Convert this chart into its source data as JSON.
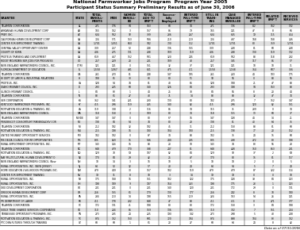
{
  "title1": "National Farmworker Jobs Program  Program Year 2005",
  "title2": "Participant Status Summary Preliminary Results as of June 30, 2006",
  "footer": "Data as of 07/31/2006",
  "header_bg": "#b8b8b8",
  "alt_row_bg": "#e0e0e0",
  "col_headers": [
    "GRANTEE",
    "STATE",
    "TOTAL\nENROLL-\nMENTS",
    "MEN",
    "WOMEN\nENROLL-\nED",
    "TOTAL\nADV TO\nEMP'T",
    "Success-\nfully\nEmployed",
    "ENTERED\nFULL-TIME\nEMP'T",
    "STILL IN\nTRAIN-\nING",
    "CASE\nMANAGED\nENROLLEE",
    "ENTERED\nFULL-TIME\nEMP'T",
    "RELATED\nEMP'T",
    "RECEIVED\nSERVICES"
  ],
  "col_props": [
    0.21,
    0.04,
    0.06,
    0.038,
    0.054,
    0.056,
    0.062,
    0.065,
    0.055,
    0.065,
    0.058,
    0.048,
    0.057
  ],
  "rows": [
    [
      "TELAMON CORPORATION",
      "AL",
      "271",
      "176",
      "94",
      "163",
      "60",
      "34",
      "271",
      "136",
      "8.2",
      "162",
      "132"
    ],
    [
      "ARKANSAS HUMAN DEVELOPMENT CORP",
      "AR",
      "165",
      "162",
      "3",
      "157",
      "86",
      "79",
      "165",
      "121",
      "47",
      "8",
      "66"
    ],
    [
      "PREP, INC.",
      "AZ",
      "634",
      "562",
      "92",
      "339",
      "236",
      "267",
      "634",
      "635",
      "19",
      "315",
      "454"
    ],
    [
      "CALIFORNIA HUMAN DEVELOPMENT CORP",
      "CA",
      "724",
      "571",
      "153",
      "566",
      "210",
      "219",
      "724",
      "437",
      "168",
      "168",
      "326"
    ],
    [
      "CENTER FOR EMPLOYMENT TRAINING",
      "CA",
      "1,701",
      "1,051",
      "650",
      "942",
      "730",
      "312",
      "1,701",
      "1,701",
      "80",
      "759",
      "1,701"
    ],
    [
      "CENTRAL VALLEY OPPORTUNITY CENTER",
      "CA",
      "309",
      "257",
      "52",
      "248",
      "136",
      "155",
      "309",
      "228",
      "81",
      "60",
      "228"
    ],
    [
      "COUNTY OF KERN",
      "CA",
      "406",
      "275",
      "131",
      "288",
      "109",
      "119",
      "406",
      "288",
      "130",
      "119",
      "132"
    ],
    [
      "PROTEUS TRAINING AND DEPLOYMENT",
      "CA",
      "619",
      "467",
      "152",
      "501",
      "320",
      "245",
      "619",
      "502",
      "88",
      "118",
      "282"
    ],
    [
      "ROCKY MOUNTAIN SER JOBS FOR PROGRESS",
      "CO",
      "257",
      "229",
      "28",
      "201",
      "109",
      "48",
      "257",
      "145",
      "117",
      "86",
      "57"
    ],
    [
      "NEW ENGLAND FARMWORKERS COUNCIL, INC.",
      "CT/RI",
      "121",
      "121",
      "0",
      "151",
      "32",
      "37",
      "121",
      "121",
      "10",
      "10",
      "31"
    ],
    [
      "FLORIDA DEPARTMENT OF EDUCATION",
      "FL",
      "1,558",
      "1,067",
      "491",
      "631",
      "475",
      "411",
      "1,558",
      "1,168",
      "364",
      "607",
      "366"
    ],
    [
      "TELAMON CORPORATION",
      "GA",
      "261",
      "270",
      "81",
      "248",
      "147",
      "105",
      "261",
      "220",
      "44",
      "103",
      "175"
    ],
    [
      "HI DEPT OF LABOR & INDUSTRIAL RELATIONS",
      "HI",
      "108",
      "85",
      "33",
      "83",
      "80",
      "51",
      "93",
      "55",
      "0",
      "88",
      "55"
    ],
    [
      "PROTEUS, INC.",
      "IA",
      "128",
      "54",
      "74",
      "81",
      "48",
      "86",
      "128",
      "108",
      "21",
      "47",
      "88"
    ],
    [
      "IDAHO MIGRANT COUNCIL, INC.",
      "ID",
      "293",
      "225",
      "68",
      "140",
      "126",
      "84",
      "293",
      "198",
      "94",
      "163",
      "88"
    ],
    [
      "ILLINOIS MIGRANT COUNCIL",
      "IL",
      "84",
      "83",
      "1",
      "44",
      "25",
      "38",
      "84",
      "55",
      "8",
      "20",
      "44"
    ],
    [
      "TELAMON CORPORATION",
      "IN",
      "88",
      "61",
      "27",
      "48",
      "71",
      "14",
      "88",
      "88",
      "32",
      "47",
      "34"
    ],
    [
      "SER CORPORATION",
      "KS",
      "362",
      "141",
      "221",
      "230",
      "130",
      "80",
      "182",
      "275",
      "7",
      "152",
      "147"
    ],
    [
      "KENTUCKY FARMWORKER PROGRAMS, INC.",
      "KY",
      "415",
      "296",
      "119",
      "325",
      "140",
      "82",
      "415",
      "296",
      "120",
      "82",
      "151"
    ],
    [
      "MOTIVATION EDUCATION & TRAINING, INC.",
      "LA",
      "319",
      "308",
      "2",
      "316",
      "86",
      "34",
      "115",
      "71",
      "239",
      "0",
      "34"
    ],
    [
      "NEW ENGLAND FARMWORKERS COUNCIL",
      "MA",
      "118",
      "118",
      "3",
      "109",
      "80",
      "34",
      "118",
      "115",
      "13",
      "60",
      "37"
    ],
    [
      "TELAMON CORPORATION",
      "MD/DE",
      "147",
      "147",
      "0",
      "80",
      "67",
      "16",
      "147",
      "128",
      "44",
      "14",
      "21"
    ],
    [
      "PENOBSCOT CONSORTIUM TRAINING&DEV COR",
      "ME",
      "138",
      "84",
      "54",
      "74",
      "80",
      "28",
      "138",
      "81",
      "40",
      "64",
      "75"
    ],
    [
      "TELAMON CORPORATION",
      "MI",
      "212",
      "182",
      "32",
      "182",
      "45",
      "31",
      "212",
      "118",
      "88",
      "81",
      "68"
    ],
    [
      "MOTIVATION EDUCATION & TRAINING, INC.",
      "MN",
      "215",
      "198",
      "16",
      "180",
      "104",
      "100",
      "215",
      "138",
      "77",
      "20",
      "112"
    ],
    [
      "UNITED MIGRANT OPPORTUNITY SERVICES",
      "MO",
      "102",
      "102",
      "0",
      "87",
      "34",
      "88",
      "102",
      "75",
      "24",
      "15",
      "68"
    ],
    [
      "MS DELTA COUNCIL FOR RR OPPORTUNITIES",
      "MS",
      "835",
      "820",
      "15",
      "546",
      "240",
      "285",
      "835",
      "238",
      "272",
      "80",
      "188"
    ],
    [
      "RURAL EMPLOYMENT OPPORTUNITIES, INC.",
      "MT",
      "143",
      "124",
      "16",
      "88",
      "20",
      "10",
      "143",
      "74",
      "83",
      "55",
      "28"
    ],
    [
      "TELAMON CORPORATION",
      "NC",
      "648",
      "479",
      "170",
      "388",
      "247",
      "81",
      "648",
      "428",
      "150",
      "863",
      "281"
    ],
    [
      "MOTIVATION EDUCATION & TRAINING, INC.",
      "ND",
      "129",
      "70",
      "59",
      "107",
      "82",
      "84",
      "129",
      "92",
      "37",
      "2",
      "69"
    ],
    [
      "NAF MULTICULTURAL HUMAN DEVELOPMENT O",
      "NE",
      "170",
      "84",
      "29",
      "42",
      "25",
      "47",
      "170",
      "80",
      "15",
      "81",
      "117"
    ],
    [
      "NEW ENGLAND FARMWORKERS COUNCIL (New",
      "NH",
      "18",
      "14",
      "3",
      "16",
      "10",
      "5",
      "18",
      "18",
      "2",
      "0",
      "5"
    ],
    [
      "RURAL OPPORTUNITIES, INC. (NEW JERSEY)",
      "NJ",
      "64",
      "52",
      "12",
      "57",
      "20",
      "24",
      "64",
      "54",
      "5",
      "7",
      "24"
    ],
    [
      "HOME EDUCATION LIVELIHOODS PROGRAM, INC.",
      "NM",
      "479",
      "449",
      "30",
      "157",
      "102",
      "119",
      "479",
      "479",
      "87",
      "322",
      "314"
    ],
    [
      "CENTER FOR EMPLOYMENT TRAINING",
      "NV",
      "19",
      "11",
      "8",
      "18",
      "3",
      "14",
      "19",
      "19",
      "0",
      "0",
      "18"
    ],
    [
      "RURAL OPPORTUNITIES, INC.",
      "NY",
      "175",
      "168",
      "16",
      "151",
      "102",
      "122",
      "175",
      "128",
      "39",
      "84",
      "123"
    ],
    [
      "RURAL OPPORTUNITIES, INC.",
      "OH",
      "198",
      "189",
      "9",
      "197",
      "164",
      "323",
      "198",
      "175",
      "23",
      "1",
      "123"
    ],
    [
      "OKO DEVELOPMENT CORPORATION",
      "OK",
      "201",
      "201",
      "0",
      "201",
      "140",
      "120",
      "201",
      "172",
      "29",
      "0",
      "131"
    ],
    [
      "OREGON HUMAN DEVELOPMENT CORP.",
      "OR",
      "256",
      "155",
      "61",
      "179",
      "130",
      "177",
      "256",
      "242",
      "8",
      "70",
      "180"
    ],
    [
      "RURAL OPPORTUNITIES, INC.",
      "PA",
      "234",
      "210",
      "14",
      "198",
      "155",
      "219",
      "224",
      "163",
      "54",
      "26",
      "121"
    ],
    [
      "PR DEPARTMENT OF LABOR",
      "PR",
      "411",
      "178",
      "232",
      "648",
      "47",
      "88",
      "411",
      "411",
      "0",
      "271",
      "377"
    ],
    [
      "TELAMON CORPORATION",
      "SC",
      "172",
      "131",
      "41",
      "108",
      "80",
      "80",
      "172",
      "118",
      "3",
      "84",
      "108"
    ],
    [
      "SIOUX TRIBE SHARED SERVICES COOPERATIVE",
      "SD",
      "310",
      "224",
      "86",
      "159",
      "136",
      "105",
      "310",
      "302",
      "7",
      "151",
      "204"
    ],
    [
      "TENNESSEE OPPORTUNITY PROGRAMS, INC.",
      "TN",
      "273",
      "235",
      "24",
      "225",
      "190",
      "142",
      "273",
      "298",
      "5",
      "48",
      "208"
    ],
    [
      "MOTIVATION EDUCATION & TRAINING, INC.",
      "TX",
      "874",
      "762",
      "150",
      "681",
      "720",
      "704",
      "874",
      "898",
      "104",
      "83",
      "762"
    ],
    [
      "PTC DBA FUTURES THROUGH TRAINING",
      "UT",
      "68",
      "68",
      "1",
      "61",
      "20",
      "27",
      "68",
      "64",
      "24",
      "8",
      "42"
    ]
  ]
}
